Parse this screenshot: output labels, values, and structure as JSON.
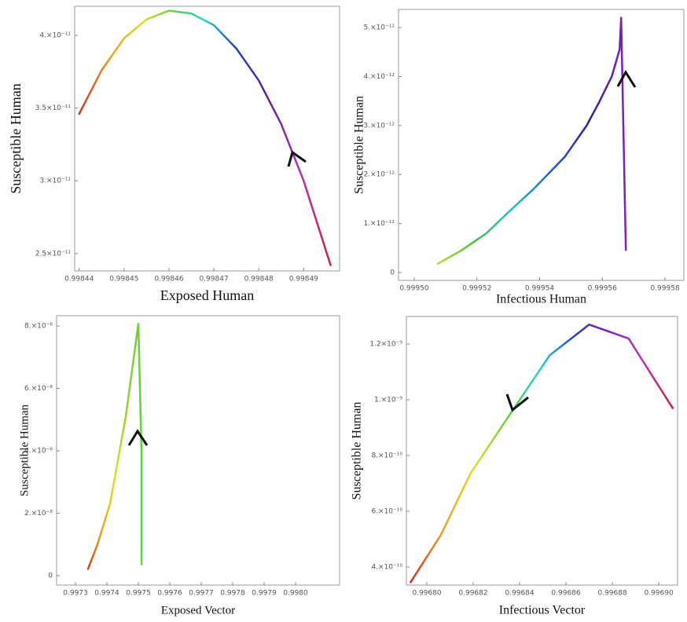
{
  "chart_data": [
    {
      "type": "line",
      "x_label": "Exposed Human",
      "y_label": "Susceptible Human",
      "x": [
        0.99844,
        0.998445,
        0.99845,
        0.998455,
        0.99846,
        0.998465,
        0.99847,
        0.998475,
        0.99848,
        0.998485,
        0.99849,
        0.998496
      ],
      "values": [
        3.46e-11,
        3.76e-11,
        3.98e-11,
        4.11e-11,
        4.17e-11,
        4.15e-11,
        4.07e-11,
        3.91e-11,
        3.69e-11,
        3.39e-11,
        3e-11,
        2.42e-11
      ],
      "colors": [
        "#d03020",
        "#f0a020",
        "#e0e020",
        "#60d040",
        "#20d0d0",
        "#2040c0",
        "#6020a0",
        "#b030c0",
        "#d02040"
      ],
      "xlim": [
        0.998439,
        0.998498
      ],
      "ylim": [
        2.38e-11,
        4.2e-11
      ],
      "xticks": [
        0.99844,
        0.99845,
        0.99846,
        0.99847,
        0.99848,
        0.99849
      ],
      "yticks": [
        {
          "value": 4e-11,
          "label": "4.×10⁻¹¹"
        },
        {
          "value": 3.5e-11,
          "label": "3.5×10⁻¹¹"
        },
        {
          "value": 3e-11,
          "label": "3.×10⁻¹¹"
        },
        {
          "value": 2.5e-11,
          "label": "2.5×10⁻¹¹"
        }
      ]
    },
    {
      "type": "line",
      "x_label": "Infectious Human",
      "y_label": "Susceptible Human",
      "x": [
        0.9995075,
        0.999515,
        0.999523,
        0.99953,
        0.999538,
        0.999548,
        0.999555,
        0.999559,
        0.999563,
        0.9995655,
        0.999566,
        0.9995675
      ],
      "values": [
        1.8e-13,
        4.5e-13,
        8e-13,
        1.23e-12,
        1.7e-12,
        2.36e-12,
        3e-12,
        3.48e-12,
        4e-12,
        4.55e-12,
        5.2e-12,
        4.6e-13
      ],
      "colors": [
        "#b0e030",
        "#40c040",
        "#20c0c0",
        "#2060d0",
        "#3020a0",
        "#8020c0"
      ],
      "xlim": [
        0.999495,
        0.999586
      ],
      "ylim": [
        -1.6e-13,
        5.37e-12
      ],
      "xticks": [
        {
          "value": 0.9995,
          "label": "0.99950"
        },
        0.99952,
        0.99954,
        0.99956,
        0.99958
      ],
      "yticks": [
        0,
        {
          "value": 1e-12,
          "label": "1.×10⁻¹²"
        },
        {
          "value": 2e-12,
          "label": "2.×10⁻¹²"
        },
        {
          "value": 3e-12,
          "label": "3.×10⁻¹²"
        },
        {
          "value": 4e-12,
          "label": "4.×10⁻¹²"
        },
        {
          "value": 5e-12,
          "label": "5.×10⁻¹²"
        }
      ]
    },
    {
      "type": "line",
      "x_label": "Exposed Vector",
      "y_label": "Susceptible Human",
      "x": [
        0.99734,
        0.99737,
        0.99741,
        0.99746,
        0.9975,
        0.99751,
        0.99751
      ],
      "values": [
        2.2e-09,
        1e-08,
        2.3e-08,
        5.1e-08,
        8.07e-08,
        4e-08,
        3.7e-09
      ],
      "colors": [
        "#d04020",
        "#f0a020",
        "#e0e020",
        "#90d030",
        "#60d040"
      ],
      "xlim": [
        0.99724,
        0.99814
      ],
      "ylim": [
        -3e-09,
        8.33e-08
      ],
      "xticks": [
        0.9973,
        0.9974,
        0.9975,
        0.9976,
        0.9977,
        0.9978,
        0.9979,
        {
          "value": 0.998,
          "label": "0.9980"
        }
      ],
      "yticks": [
        0,
        {
          "value": 2e-08,
          "label": "2.×10⁻⁸"
        },
        {
          "value": 4e-08,
          "label": "4.×10⁻⁸"
        },
        {
          "value": 6e-08,
          "label": "6.×10⁻⁸"
        },
        {
          "value": 8e-08,
          "label": "8.×10⁻⁸"
        }
      ]
    },
    {
      "type": "line",
      "x_label": "Infectious Vector",
      "y_label": "Susceptible Human",
      "x": [
        0.996793,
        0.996806,
        0.996819,
        0.996836,
        0.996853,
        0.99687,
        0.996887,
        0.996906
      ],
      "values": [
        3.45e-10,
        5.14e-10,
        7.38e-10,
        9.5e-10,
        1.16e-09,
        1.27e-09,
        1.22e-09,
        9.7e-10
      ],
      "colors": [
        "#d03020",
        "#f0a020",
        "#e0e020",
        "#60d040",
        "#20d0d0",
        "#2040c0",
        "#8020b0",
        "#c030c0",
        "#d02040"
      ],
      "xlim": [
        0.9967912,
        0.9969081
      ],
      "ylim": [
        3.35e-10,
        1.299e-09
      ],
      "xticks": [
        {
          "value": 0.9968,
          "label": "0.99680"
        },
        0.99682,
        0.99684,
        0.99686,
        0.99688,
        {
          "value": 0.9969,
          "label": "0.99690"
        }
      ],
      "yticks": [
        {
          "value": 4e-10,
          "label": "4.×10⁻¹⁰"
        },
        {
          "value": 6e-10,
          "label": "6.×10⁻¹⁰"
        },
        {
          "value": 8e-10,
          "label": "8.×10⁻¹⁰"
        },
        {
          "value": 1e-09,
          "label": "1.×10⁻⁹"
        },
        {
          "value": 1.2e-09,
          "label": "1.2×10⁻⁹"
        }
      ]
    }
  ]
}
